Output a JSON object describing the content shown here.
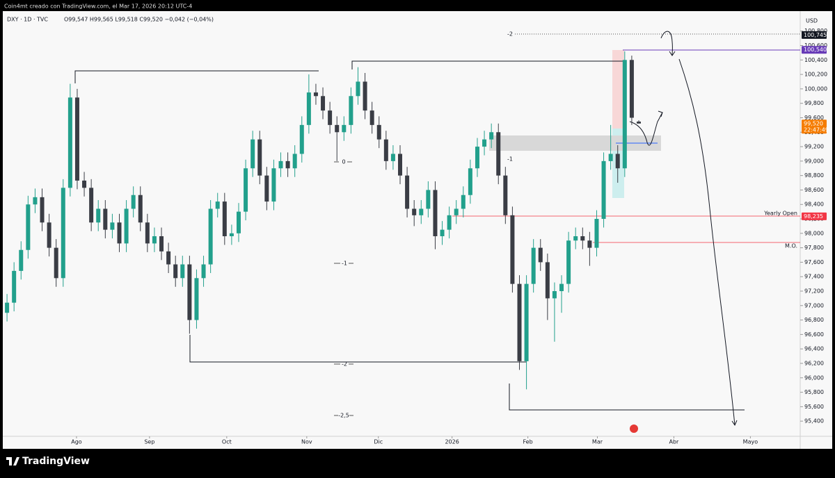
{
  "header": {
    "credit": "Coin4mt creado con TradingView.com, el Mar 17, 2026 20:12 UTC-4",
    "symbol": "DXY · 1D · TVC",
    "ohlc": "O99,547  H99,565  L99,518  C99,520  −0,042 (−0,04%)"
  },
  "footer": {
    "brand": "TradingView"
  },
  "chart_data": {
    "type": "candlestick",
    "currency": "USD",
    "up_color": "#22a08c",
    "down_color": "#3a3d45",
    "grid": false,
    "xlim": [
      -1,
      112.8
    ],
    "ylim": [
      95.19,
      101.23
    ],
    "xticks": [
      {
        "value": 9.9,
        "label": "Ago"
      },
      {
        "value": 20.3,
        "label": "Sep"
      },
      {
        "value": 31.3,
        "label": "Oct"
      },
      {
        "value": 42.7,
        "label": "Nov"
      },
      {
        "value": 52.9,
        "label": "Dic"
      },
      {
        "value": 63.4,
        "label": "2026"
      },
      {
        "value": 74.2,
        "label": "Feb"
      },
      {
        "value": 84.1,
        "label": "Mar"
      },
      {
        "value": 95,
        "label": "Abr"
      },
      {
        "value": 105.9,
        "label": "Mayo"
      }
    ],
    "yticks": [
      {
        "value": 95.4,
        "label": "95,400"
      },
      {
        "value": 95.6,
        "label": "95,600"
      },
      {
        "value": 95.8,
        "label": "95,800"
      },
      {
        "value": 96,
        "label": "96,000"
      },
      {
        "value": 96.2,
        "label": "96,200"
      },
      {
        "value": 96.4,
        "label": "96,400"
      },
      {
        "value": 96.6,
        "label": "96,600"
      },
      {
        "value": 96.8,
        "label": "96,800"
      },
      {
        "value": 97,
        "label": "97,000"
      },
      {
        "value": 97.2,
        "label": "97,200"
      },
      {
        "value": 97.4,
        "label": "97,400"
      },
      {
        "value": 97.6,
        "label": "97,600"
      },
      {
        "value": 97.8,
        "label": "97,800"
      },
      {
        "value": 98,
        "label": "98,000"
      },
      {
        "value": 98.2,
        "label": "98,200"
      },
      {
        "value": 98.4,
        "label": "98,400"
      },
      {
        "value": 98.6,
        "label": "98,600"
      },
      {
        "value": 98.8,
        "label": "98,800"
      },
      {
        "value": 99,
        "label": "99,000"
      },
      {
        "value": 99.2,
        "label": "99,200"
      },
      {
        "value": 99.4,
        "label": "99,400"
      },
      {
        "value": 99.6,
        "label": "99,600"
      },
      {
        "value": 99.8,
        "label": "99,800"
      },
      {
        "value": 100,
        "label": "100,000"
      },
      {
        "value": 100.2,
        "label": "100,200"
      },
      {
        "value": 100.4,
        "label": "100,400"
      },
      {
        "value": 100.6,
        "label": "100,600"
      },
      {
        "value": 100.8,
        "label": "100,800"
      }
    ],
    "candles": [
      [
        96.9,
        97.16,
        96.78,
        97.04
      ],
      [
        97.04,
        97.6,
        96.92,
        97.48
      ],
      [
        97.48,
        97.89,
        97.36,
        97.77
      ],
      [
        97.77,
        98.52,
        97.65,
        98.4
      ],
      [
        98.4,
        98.62,
        98.28,
        98.5
      ],
      [
        98.5,
        98.62,
        98.03,
        98.15
      ],
      [
        98.15,
        98.27,
        97.68,
        97.8
      ],
      [
        97.8,
        97.92,
        97.26,
        97.38
      ],
      [
        97.38,
        98.75,
        97.26,
        98.63
      ],
      [
        98.63,
        100.07,
        98.51,
        99.88
      ],
      [
        99.88,
        100,
        98.61,
        98.73
      ],
      [
        98.73,
        98.85,
        98.51,
        98.63
      ],
      [
        98.63,
        98.75,
        98.03,
        98.15
      ],
      [
        98.15,
        98.46,
        98.03,
        98.34
      ],
      [
        98.34,
        98.46,
        97.93,
        98.05
      ],
      [
        98.05,
        98.27,
        97.93,
        98.15
      ],
      [
        98.15,
        98.27,
        97.74,
        97.86
      ],
      [
        97.86,
        98.46,
        97.74,
        98.34
      ],
      [
        98.34,
        98.65,
        98.22,
        98.53
      ],
      [
        98.53,
        98.65,
        98.03,
        98.15
      ],
      [
        98.15,
        98.27,
        97.74,
        97.86
      ],
      [
        97.86,
        98.08,
        97.74,
        97.96
      ],
      [
        97.96,
        98.08,
        97.63,
        97.75
      ],
      [
        97.75,
        97.87,
        97.45,
        97.57
      ],
      [
        97.57,
        97.69,
        97.26,
        97.38
      ],
      [
        97.38,
        97.69,
        97.26,
        97.57
      ],
      [
        97.57,
        97.69,
        96.61,
        96.8
      ],
      [
        96.8,
        97.5,
        96.68,
        97.38
      ],
      [
        97.38,
        97.69,
        97.26,
        97.57
      ],
      [
        97.57,
        98.46,
        97.45,
        98.34
      ],
      [
        98.34,
        98.56,
        98.22,
        98.44
      ],
      [
        98.44,
        98.56,
        97.84,
        97.96
      ],
      [
        97.96,
        98.12,
        97.84,
        98
      ],
      [
        98,
        98.42,
        97.88,
        98.3
      ],
      [
        98.3,
        99.02,
        98.18,
        98.9
      ],
      [
        98.9,
        99.42,
        98.78,
        99.3
      ],
      [
        99.3,
        99.42,
        98.68,
        98.8
      ],
      [
        98.8,
        98.92,
        98.32,
        98.44
      ],
      [
        98.44,
        99.02,
        98.32,
        98.9
      ],
      [
        98.9,
        99.12,
        98.78,
        99
      ],
      [
        99,
        99.12,
        98.78,
        98.9
      ],
      [
        98.9,
        99.22,
        98.78,
        99.1
      ],
      [
        99.1,
        99.62,
        98.98,
        99.5
      ],
      [
        99.5,
        100.2,
        99.38,
        99.95
      ],
      [
        99.95,
        100.07,
        99.78,
        99.9
      ],
      [
        99.9,
        100.02,
        99.58,
        99.7
      ],
      [
        99.7,
        99.82,
        99.38,
        99.5
      ],
      [
        99.5,
        99.62,
        99,
        99.4
      ],
      [
        99.4,
        99.62,
        99.28,
        99.5
      ],
      [
        99.5,
        100.02,
        99.38,
        99.9
      ],
      [
        99.9,
        100.3,
        99.78,
        100.1
      ],
      [
        100.1,
        100.22,
        99.58,
        99.7
      ],
      [
        99.7,
        99.82,
        99.38,
        99.5
      ],
      [
        99.5,
        99.62,
        99.18,
        99.3
      ],
      [
        99.3,
        99.42,
        98.88,
        99
      ],
      [
        99,
        99.22,
        98.88,
        99.1
      ],
      [
        99.1,
        99.22,
        98.68,
        98.8
      ],
      [
        98.8,
        98.92,
        98.22,
        98.34
      ],
      [
        98.34,
        98.46,
        98.1,
        98.25
      ],
      [
        98.25,
        98.46,
        98.13,
        98.34
      ],
      [
        98.34,
        98.72,
        98.22,
        98.6
      ],
      [
        98.6,
        98.72,
        97.78,
        97.96
      ],
      [
        97.96,
        98.17,
        97.84,
        98.05
      ],
      [
        98.05,
        98.37,
        97.93,
        98.25
      ],
      [
        98.25,
        98.46,
        98.13,
        98.34
      ],
      [
        98.34,
        98.65,
        98.22,
        98.53
      ],
      [
        98.53,
        99.02,
        98.41,
        98.9
      ],
      [
        98.9,
        99.32,
        98.78,
        99.2
      ],
      [
        99.2,
        99.42,
        99.08,
        99.3
      ],
      [
        99.3,
        99.52,
        99.18,
        99.4
      ],
      [
        99.4,
        99.52,
        98.68,
        98.8
      ],
      [
        98.8,
        98.92,
        98.13,
        98.25
      ],
      [
        98.25,
        98.37,
        97.18,
        97.3
      ],
      [
        97.3,
        97.42,
        96.11,
        96.23
      ],
      [
        96.23,
        97.42,
        95.84,
        97.3
      ],
      [
        97.3,
        97.92,
        97.18,
        97.8
      ],
      [
        97.8,
        97.92,
        97.48,
        97.6
      ],
      [
        97.6,
        97.72,
        96.8,
        97.1
      ],
      [
        97.1,
        97.32,
        96.5,
        97.2
      ],
      [
        97.2,
        97.42,
        96.9,
        97.3
      ],
      [
        97.3,
        98.02,
        97.18,
        97.9
      ],
      [
        97.9,
        98.08,
        97.78,
        97.96
      ],
      [
        97.96,
        98.08,
        97.78,
        97.9
      ],
      [
        97.9,
        98.02,
        97.55,
        97.8
      ],
      [
        97.8,
        98.32,
        97.68,
        98.2
      ],
      [
        98.2,
        99.12,
        98.08,
        99
      ],
      [
        99,
        99.5,
        98.88,
        99.1
      ],
      [
        99.1,
        99.22,
        98.7,
        98.9
      ],
      [
        98.9,
        100.52,
        98.78,
        100.4
      ],
      [
        100.4,
        100.46,
        99.5,
        99.6
      ],
      [
        99.547,
        99.565,
        99.518,
        99.52
      ]
    ],
    "price_labels": [
      {
        "value": 100.745,
        "label": "100,745",
        "color": "#131722"
      },
      {
        "value": 100.54,
        "label": "100,540",
        "color": "#673ab7"
      },
      {
        "value": 99.52,
        "label": "99,520",
        "color": "#f57c00",
        "sub": "22:47:49"
      },
      {
        "value": 98.235,
        "label": "98,235",
        "color": "#f23645"
      }
    ],
    "annotations": [
      "Yearly Open",
      "M.O."
    ],
    "fib_labels": [
      "-2",
      "0",
      "-1",
      "-1",
      "-2",
      "-2,5"
    ]
  }
}
